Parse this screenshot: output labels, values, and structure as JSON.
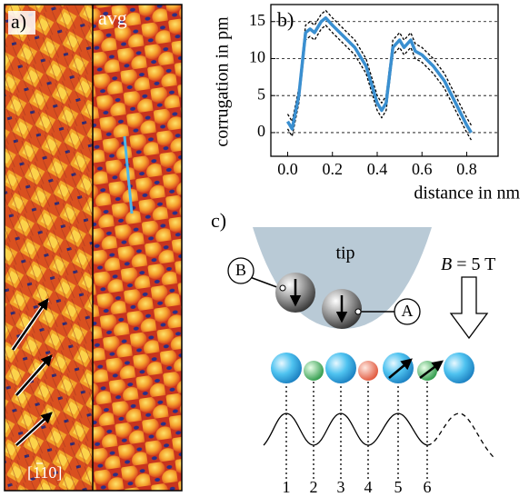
{
  "panel_a": {
    "label": "a)",
    "avg_label": "avg",
    "direction": "[110]"
  },
  "chart_data": {
    "type": "line",
    "panel_label": "b)",
    "x_label": "distance in nm",
    "y_label": "corrugation in pm",
    "x": [
      0,
      0.02,
      0.05,
      0.08,
      0.1,
      0.12,
      0.15,
      0.17,
      0.2,
      0.25,
      0.3,
      0.35,
      0.4,
      0.42,
      0.44,
      0.47,
      0.5,
      0.52,
      0.55,
      0.57,
      0.6,
      0.65,
      0.7,
      0.75,
      0.8,
      0.82
    ],
    "series": [
      {
        "color": "#000000",
        "style": "dashed",
        "values": [
          2.5,
          1.5,
          6,
          14.5,
          15,
          14.5,
          16,
          16.5,
          15.5,
          14,
          12.5,
          10,
          5,
          4,
          5,
          12.5,
          13.5,
          12.5,
          13.5,
          12,
          11.5,
          10,
          8,
          5,
          2,
          1
        ]
      },
      {
        "color": "#000000",
        "style": "dashed",
        "values": [
          0.5,
          -0.5,
          4,
          12.5,
          13,
          12.5,
          14,
          14.5,
          13.5,
          12,
          10.5,
          8,
          3,
          2,
          3,
          10.5,
          11.5,
          10.5,
          11.5,
          10,
          9.5,
          8,
          6,
          3,
          0,
          -1
        ]
      },
      {
        "color": "#3a8fd0",
        "style": "solid",
        "values": [
          1.5,
          0.5,
          5,
          13.5,
          14,
          13.5,
          15,
          15.5,
          14.5,
          13,
          11.5,
          9,
          4,
          3,
          4,
          11.5,
          12.5,
          11.5,
          12.5,
          11,
          10.5,
          9,
          7,
          4,
          1,
          0
        ]
      }
    ],
    "xlim": [
      -0.075,
      0.94
    ],
    "ylim": [
      -3.2,
      17.3
    ],
    "xticks": [
      {
        "value": 0,
        "label": "0.0"
      },
      0.2,
      0.4,
      0.6,
      0.8
    ],
    "yticks": [
      0,
      5,
      10,
      15
    ],
    "grid": true
  },
  "panel_c": {
    "label": "c)",
    "tip": "tip",
    "atom_b": "B",
    "atom_a": "A",
    "field_symbol": "B",
    "field_value": " = 5 T",
    "sites": [
      "1",
      "2",
      "3",
      "4",
      "5",
      "6"
    ]
  }
}
